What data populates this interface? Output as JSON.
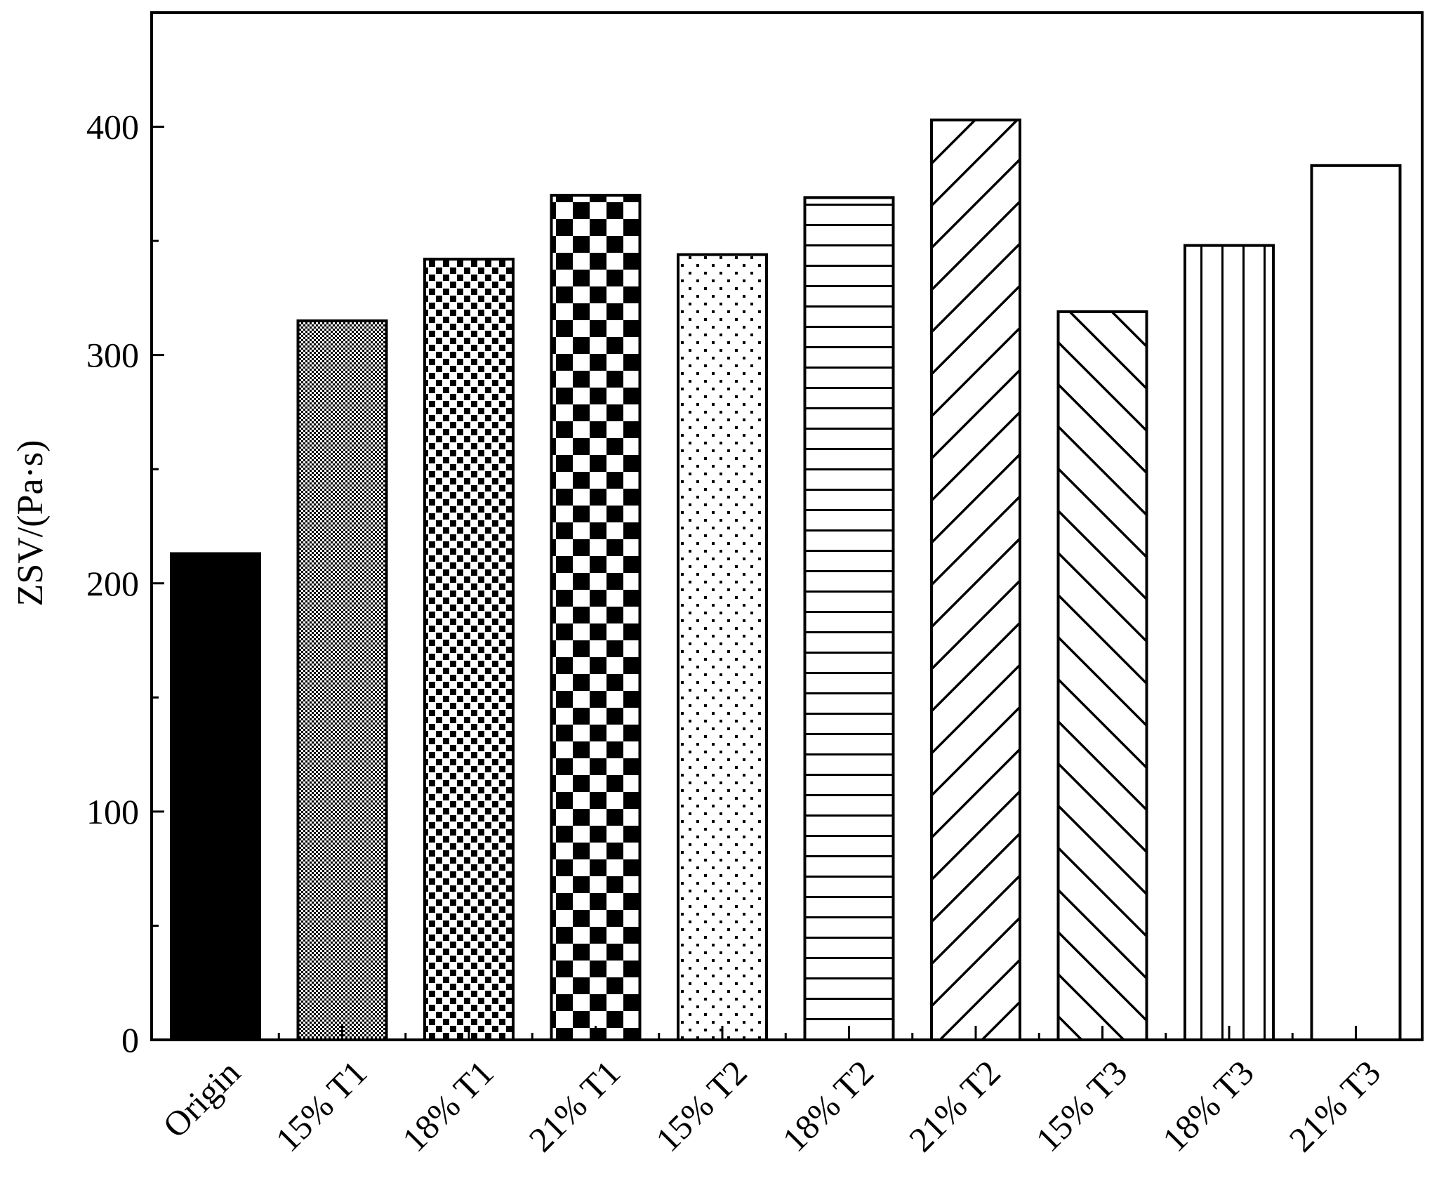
{
  "chart_data": {
    "type": "bar",
    "title": "",
    "xlabel": "",
    "ylabel": "ZSV/(Pa·s)",
    "ylim": [
      0,
      450
    ],
    "yticks": [
      0,
      100,
      200,
      300,
      400
    ],
    "yminor_step": 50,
    "grid": false,
    "categories": [
      "Origin",
      "15% T1",
      "18% T1",
      "21% T1",
      "15% T2",
      "18% T2",
      "21% T2",
      "15% T3",
      "18% T3",
      "21% T3"
    ],
    "values": [
      213,
      315,
      342,
      370,
      344,
      369,
      403,
      319,
      348,
      383
    ],
    "fills": [
      "solid",
      "fine-check",
      "small-squares",
      "checker",
      "dots",
      "horizontal",
      "diag-up",
      "diag-down",
      "vertical",
      "blank"
    ],
    "colors": {
      "ink": "#000000",
      "background": "#ffffff"
    }
  }
}
